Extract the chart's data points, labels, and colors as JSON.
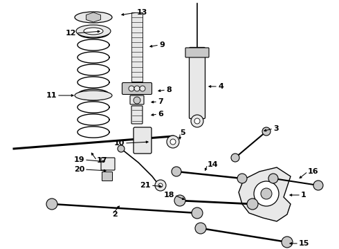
{
  "background_color": "#ffffff",
  "line_color": "#000000",
  "part_color": "#e8e8e8",
  "dark_color": "#555555"
}
